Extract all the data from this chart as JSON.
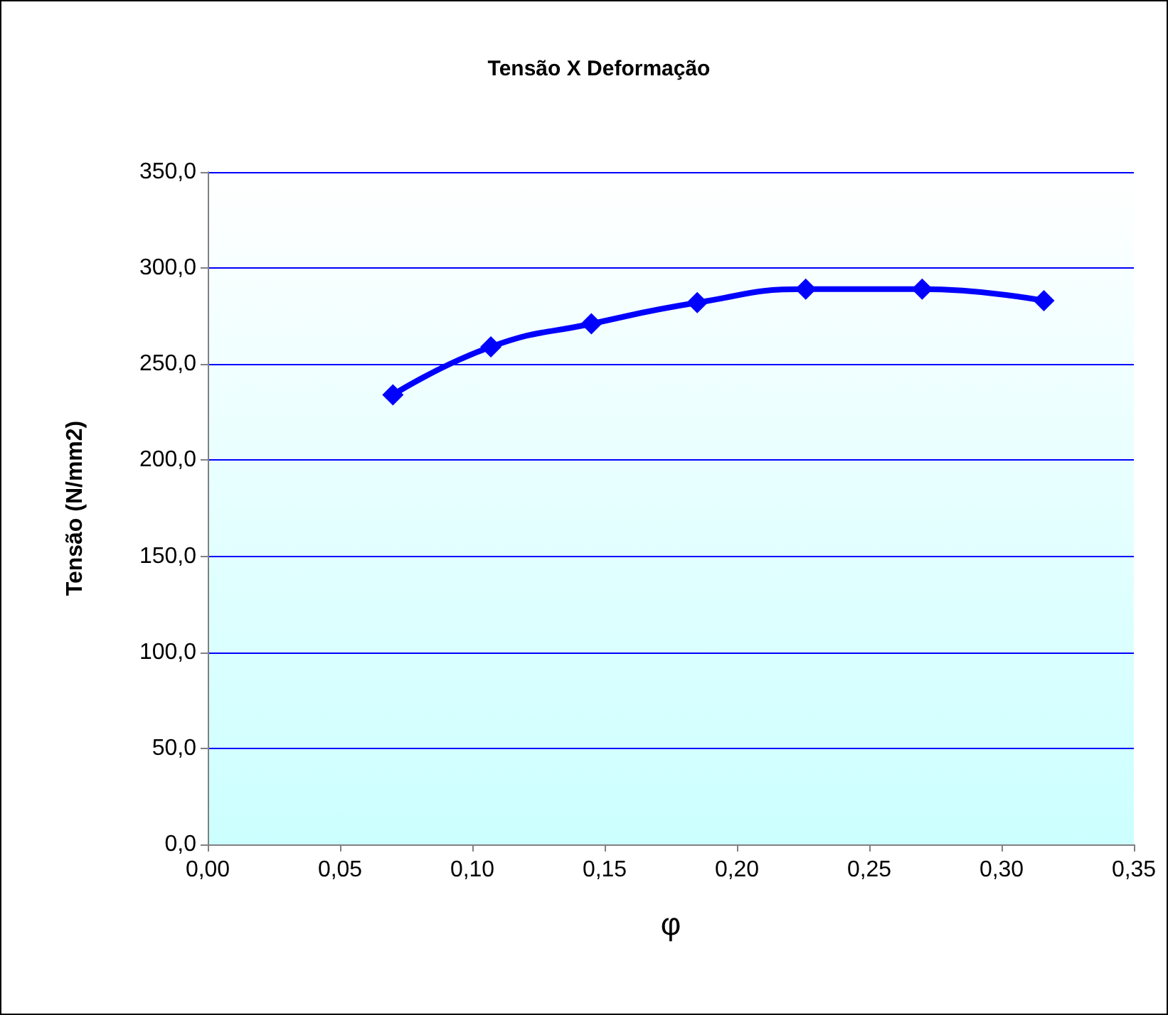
{
  "chart_data": {
    "type": "line",
    "title": "Tensão X Deformação",
    "xlabel": "φ",
    "ylabel": "Tensão (N/mm2)",
    "x": [
      0.07,
      0.107,
      0.145,
      0.185,
      0.226,
      0.27,
      0.316
    ],
    "series": [
      {
        "color": "#0000ff",
        "values": [
          234,
          259,
          271,
          282,
          289,
          289,
          283
        ]
      }
    ],
    "xlim": [
      0,
      0.35
    ],
    "ylim": [
      0,
      350
    ],
    "xticks": [
      {
        "value": 0,
        "label": "0,00"
      },
      {
        "value": 0.05,
        "label": "0,05"
      },
      {
        "value": 0.1,
        "label": "0,10"
      },
      {
        "value": 0.15,
        "label": "0,15"
      },
      {
        "value": 0.2,
        "label": "0,20"
      },
      {
        "value": 0.25,
        "label": "0,25"
      },
      {
        "value": 0.3,
        "label": "0,30"
      },
      {
        "value": 0.35,
        "label": "0,35"
      }
    ],
    "yticks": [
      {
        "value": 0,
        "label": "0,0"
      },
      {
        "value": 50,
        "label": "50,0"
      },
      {
        "value": 100,
        "label": "100,0"
      },
      {
        "value": 150,
        "label": "150,0"
      },
      {
        "value": 200,
        "label": "200,0"
      },
      {
        "value": 250,
        "label": "250,0"
      },
      {
        "value": 300,
        "label": "300,0"
      },
      {
        "value": 350,
        "label": "350,0"
      }
    ],
    "grid": "y",
    "marker": "diamond",
    "line_style": "solid"
  }
}
